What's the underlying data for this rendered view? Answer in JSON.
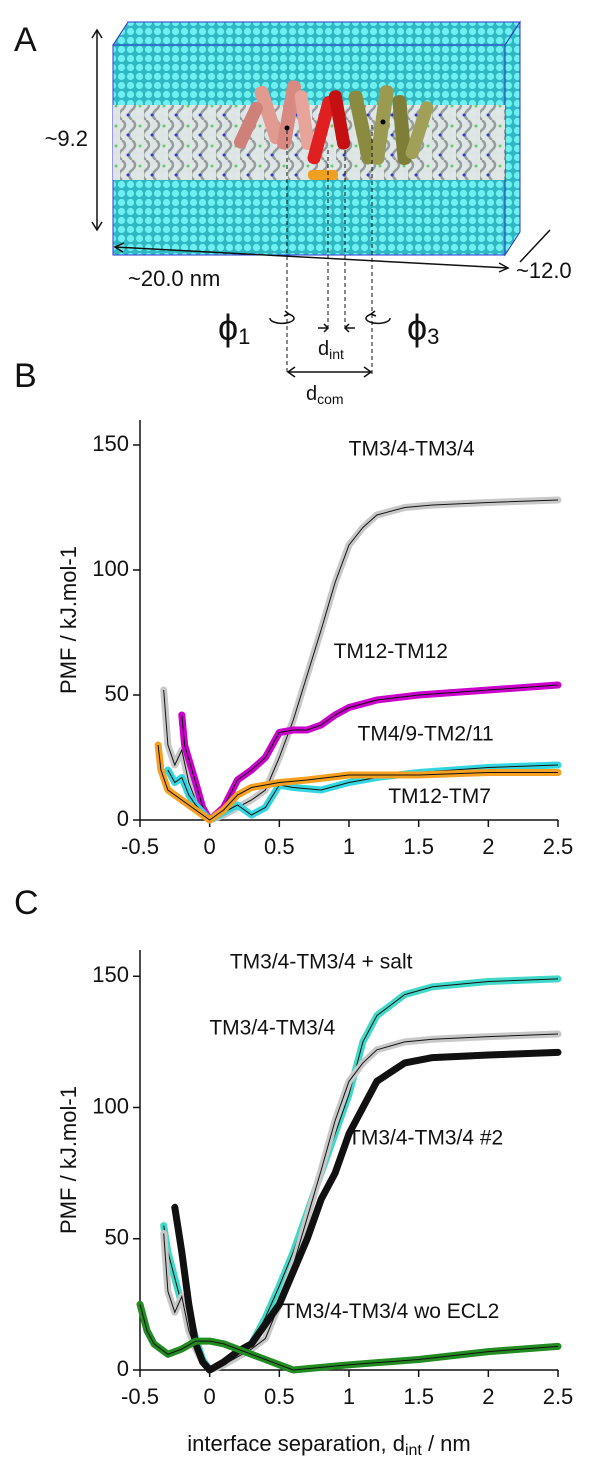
{
  "diagram": {
    "label": "A",
    "height": "~9.2",
    "length": "~20.0 nm",
    "depth": "~12.0",
    "phi1": [
      "ϕ",
      "1"
    ],
    "phi3": [
      "ϕ",
      "3"
    ],
    "d_int": [
      "d",
      "int"
    ],
    "d_com": [
      "d",
      "com"
    ]
  },
  "chart_data": [
    {
      "type": "line",
      "panel": "B",
      "ylabel": "PMF / kJ.mol-1",
      "xlim": [
        -0.5,
        2.5
      ],
      "ylim": [
        0,
        160
      ],
      "xticks": [
        -0.5,
        0,
        0.5,
        1,
        1.5,
        2,
        2.5
      ],
      "yticks": [
        0,
        50,
        100,
        150
      ],
      "series": [
        {
          "name": "TM3/4-TM3/4",
          "color": "#c8c8c8",
          "x": [
            -0.33,
            -0.3,
            -0.25,
            -0.2,
            -0.15,
            -0.1,
            -0.05,
            0,
            0.1,
            0.2,
            0.3,
            0.4,
            0.5,
            0.6,
            0.7,
            0.8,
            0.9,
            1.0,
            1.1,
            1.2,
            1.4,
            1.6,
            2.0,
            2.5
          ],
          "values": [
            52,
            30,
            22,
            28,
            15,
            8,
            3,
            0,
            2,
            5,
            8,
            12,
            25,
            40,
            58,
            76,
            95,
            110,
            117,
            122,
            125,
            126,
            127,
            128
          ]
        },
        {
          "name": "TM12-TM12",
          "color": "#cc00cc",
          "x": [
            -0.2,
            -0.18,
            -0.1,
            -0.05,
            0,
            0.1,
            0.2,
            0.3,
            0.4,
            0.5,
            0.6,
            0.7,
            0.8,
            0.9,
            1.0,
            1.2,
            1.5,
            2.0,
            2.5
          ],
          "values": [
            42,
            30,
            15,
            5,
            0,
            5,
            16,
            20,
            25,
            35,
            36,
            36,
            38,
            42,
            45,
            48,
            50,
            52,
            54
          ]
        },
        {
          "name": "TM4/9-TM2/11",
          "color": "#33d6e0",
          "x": [
            -0.3,
            -0.25,
            -0.2,
            -0.15,
            -0.1,
            0,
            0.1,
            0.2,
            0.3,
            0.4,
            0.5,
            0.6,
            0.8,
            1.0,
            1.2,
            1.5,
            2.0,
            2.5
          ],
          "values": [
            20,
            15,
            17,
            10,
            6,
            0,
            3,
            6,
            2,
            5,
            14,
            13,
            12,
            15,
            17,
            19,
            21,
            22
          ]
        },
        {
          "name": "TM12-TM7",
          "color": "#f5a020",
          "x": [
            -0.37,
            -0.35,
            -0.3,
            -0.2,
            -0.1,
            0,
            0.1,
            0.2,
            0.3,
            0.4,
            0.5,
            0.7,
            1.0,
            1.5,
            2.0,
            2.5
          ],
          "values": [
            30,
            20,
            12,
            8,
            4,
            0,
            4,
            10,
            13,
            14,
            15,
            16,
            18,
            18,
            19,
            19
          ]
        }
      ]
    },
    {
      "type": "line",
      "panel": "C",
      "ylabel": "PMF / kJ.mol-1",
      "xlabel": [
        "interface separation, d",
        "int",
        " / nm"
      ],
      "xlim": [
        -0.5,
        2.5
      ],
      "ylim": [
        0,
        160
      ],
      "xticks": [
        -0.5,
        0,
        0.5,
        1,
        1.5,
        2,
        2.5
      ],
      "yticks": [
        0,
        50,
        100,
        150
      ],
      "series": [
        {
          "name": "TM3/4-TM3/4 + salt",
          "color": "#40d8c8",
          "x": [
            -0.33,
            -0.3,
            -0.25,
            -0.2,
            -0.15,
            -0.1,
            -0.05,
            0,
            0.1,
            0.2,
            0.3,
            0.4,
            0.5,
            0.6,
            0.7,
            0.8,
            0.9,
            1.0,
            1.1,
            1.2,
            1.4,
            1.6,
            2.0,
            2.5
          ],
          "values": [
            55,
            45,
            35,
            25,
            22,
            12,
            4,
            0,
            2,
            5,
            10,
            20,
            32,
            45,
            60,
            75,
            90,
            105,
            125,
            135,
            143,
            146,
            148,
            149
          ]
        },
        {
          "name": "TM3/4-TM3/4",
          "color": "#c8c8c8",
          "x": [
            -0.33,
            -0.3,
            -0.25,
            -0.2,
            -0.15,
            -0.1,
            -0.05,
            0,
            0.1,
            0.2,
            0.3,
            0.4,
            0.5,
            0.6,
            0.7,
            0.8,
            0.9,
            1.0,
            1.1,
            1.2,
            1.4,
            1.6,
            2.0,
            2.5
          ],
          "values": [
            52,
            30,
            22,
            28,
            15,
            8,
            3,
            0,
            2,
            5,
            8,
            12,
            25,
            40,
            58,
            76,
            95,
            110,
            117,
            122,
            125,
            126,
            127,
            128
          ]
        },
        {
          "name": "TM3/4-TM3/4 #2",
          "color": "#111111",
          "x": [
            -0.25,
            -0.2,
            -0.15,
            -0.1,
            -0.05,
            0,
            0.1,
            0.2,
            0.3,
            0.5,
            0.7,
            0.8,
            0.9,
            1.0,
            1.1,
            1.2,
            1.4,
            1.6,
            2.0,
            2.5
          ],
          "values": [
            62,
            45,
            25,
            10,
            3,
            0,
            3,
            7,
            10,
            25,
            50,
            65,
            75,
            90,
            100,
            110,
            117,
            119,
            120,
            121
          ]
        },
        {
          "name": "TM3/4-TM3/4 wo ECL2",
          "color": "#228b22",
          "x": [
            -0.5,
            -0.45,
            -0.4,
            -0.3,
            -0.2,
            -0.1,
            0,
            0.1,
            0.2,
            0.3,
            0.4,
            0.5,
            0.6,
            0.8,
            1.0,
            1.5,
            2.0,
            2.5
          ],
          "values": [
            25,
            15,
            10,
            6,
            8,
            11,
            11,
            10,
            8,
            6,
            4,
            2,
            0,
            1,
            2,
            4,
            7,
            9
          ]
        }
      ]
    }
  ]
}
